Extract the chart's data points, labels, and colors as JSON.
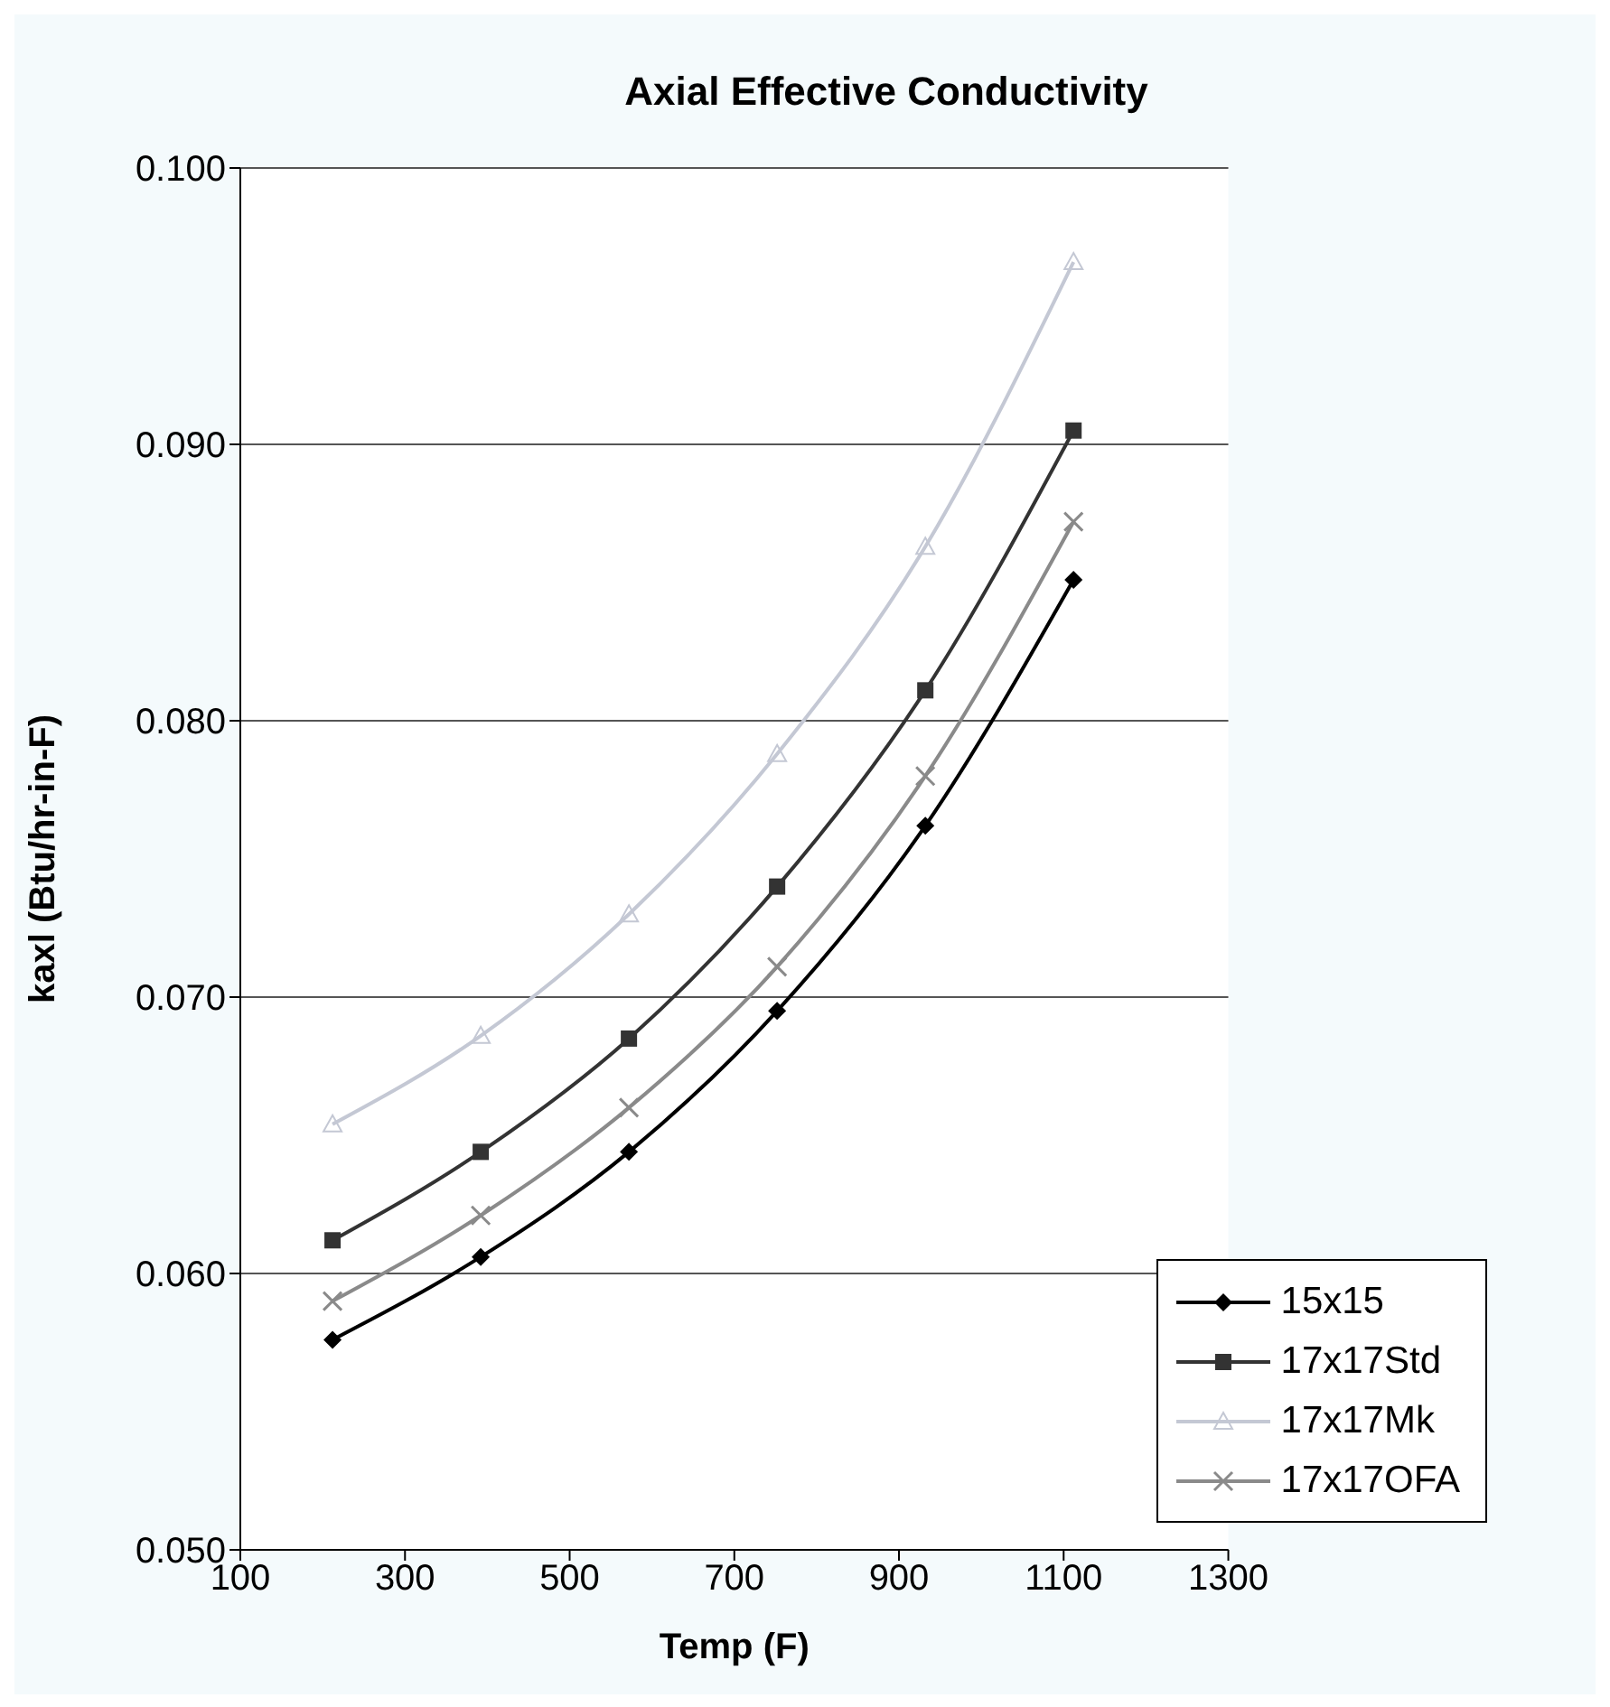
{
  "chart_data": {
    "type": "line",
    "title": "Axial Effective Conductivity",
    "xlabel": "Temp (F)",
    "ylabel": "kaxl (Btu/hr-in-F)",
    "x": [
      212,
      392,
      572,
      752,
      932,
      1112
    ],
    "series": [
      {
        "name": "15x15",
        "color": "#000000",
        "marker": "diamond",
        "values": [
          0.0576,
          0.0606,
          0.0644,
          0.0695,
          0.0762,
          0.0851
        ]
      },
      {
        "name": "17x17Std",
        "color": "#333333",
        "marker": "square",
        "values": [
          0.0612,
          0.0644,
          0.0685,
          0.074,
          0.0811,
          0.0905
        ]
      },
      {
        "name": "17x17Mk",
        "color": "#c4c8d4",
        "marker": "triangle",
        "values": [
          0.0654,
          0.0686,
          0.073,
          0.0788,
          0.0863,
          0.0966
        ]
      },
      {
        "name": "17x17OFA",
        "color": "#8a8a8a",
        "marker": "cross",
        "values": [
          0.059,
          0.0621,
          0.066,
          0.0711,
          0.078,
          0.0872
        ]
      }
    ],
    "xlim": [
      100,
      1300
    ],
    "xticks": [
      100,
      300,
      500,
      700,
      900,
      1100,
      1300
    ],
    "ylim": [
      0.05,
      0.1
    ],
    "yticks": [
      {
        "value": 0.05,
        "label": "0.050"
      },
      {
        "value": 0.06,
        "label": "0.060"
      },
      {
        "value": 0.07,
        "label": "0.070"
      },
      {
        "value": 0.08,
        "label": "0.080"
      },
      {
        "value": 0.09,
        "label": "0.090"
      },
      {
        "value": 0.1,
        "label": "0.100"
      }
    ],
    "grid": "y",
    "legend": "bottom right"
  }
}
